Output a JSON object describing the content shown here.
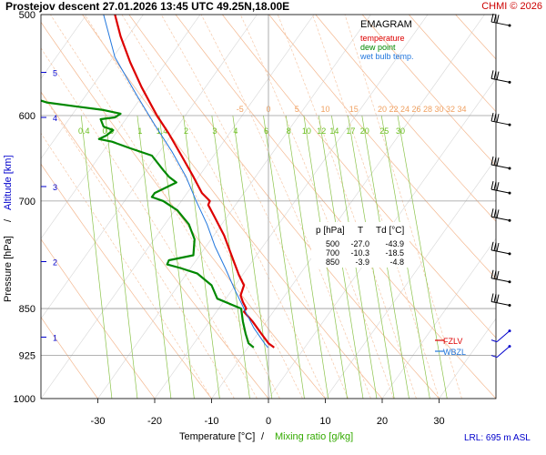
{
  "header": {
    "title": "Prostejov   descent  27.01.2026 13:45 UTC  49.25N,18.00E",
    "copyright": "CHMI © 2026"
  },
  "legend": {
    "heading": "EMAGRAM",
    "items": [
      {
        "label": "temperature",
        "color": "#dd0000"
      },
      {
        "label": "dew point",
        "color": "#008800"
      },
      {
        "label": "wet bulb temp.",
        "color": "#2277dd"
      }
    ]
  },
  "axes": {
    "xlabel_temp": "Temperature [°C]",
    "xlabel_sep": "/",
    "xlabel_mix": "Mixing ratio [g/kg]",
    "ylabel_pressure": "Pressure [hPa]",
    "ylabel_sep": "/",
    "ylabel_alt": "Altitude [km]",
    "lrl": "LRL: 695 m ASL"
  },
  "levels_table": {
    "headers": [
      "p [hPa]",
      "T",
      "Td [°C]"
    ],
    "rows": [
      [
        "500",
        "-27.0",
        "-43.9"
      ],
      [
        "700",
        "-10.3",
        "-18.5"
      ],
      [
        "850",
        "-3.9",
        "-4.8"
      ]
    ]
  },
  "markers": {
    "fzlv": "FZLV",
    "wbzl": "WBZL"
  },
  "chart_data": {
    "type": "line",
    "title": "Prostejov descent 27.01.2026 13:45 UTC 49.25N,18.00E",
    "x_range": [
      -40,
      40
    ],
    "y_range_hpa": [
      1000,
      500
    ],
    "x_ticks": [
      -30,
      -20,
      -10,
      0,
      10,
      20,
      30
    ],
    "x_tick_labels": [
      "-30",
      "-20",
      "-10",
      "0",
      "10",
      "20",
      "30"
    ],
    "pressure_ticks": [
      500,
      600,
      700,
      850,
      925,
      1000
    ],
    "altitude_ticks": [
      {
        "km": 5,
        "p": 555
      },
      {
        "km": 4,
        "p": 602
      },
      {
        "km": 3,
        "p": 682
      },
      {
        "km": 2,
        "p": 781
      },
      {
        "km": 1,
        "p": 895
      }
    ],
    "isotherm_labels": [
      {
        "t": -5,
        "label": "-5"
      },
      {
        "t": 0,
        "label": "0"
      },
      {
        "t": 5,
        "label": "5"
      },
      {
        "t": 10,
        "label": "10"
      },
      {
        "t": 15,
        "label": "15"
      },
      {
        "t": 20,
        "label": "20"
      },
      {
        "t": 22,
        "label": "22"
      },
      {
        "t": 24,
        "label": "24"
      },
      {
        "t": 26,
        "label": "26"
      },
      {
        "t": 28,
        "label": "28"
      },
      {
        "t": 30,
        "label": "30"
      },
      {
        "t": 32,
        "label": "32"
      },
      {
        "t": 34,
        "label": "34"
      }
    ],
    "mixing_ratios": [
      {
        "w": 0.4,
        "label": "0.4"
      },
      {
        "w": 0.6,
        "label": "0.6"
      },
      {
        "w": 1,
        "label": "1"
      },
      {
        "w": 1.4,
        "label": "1.4"
      },
      {
        "w": 2,
        "label": "2"
      },
      {
        "w": 3,
        "label": "3"
      },
      {
        "w": 4,
        "label": "4"
      },
      {
        "w": 6,
        "label": "6"
      },
      {
        "w": 8,
        "label": "8"
      },
      {
        "w": 10,
        "label": "10"
      },
      {
        "w": 12,
        "label": "12"
      },
      {
        "w": 14,
        "label": "14"
      },
      {
        "w": 17,
        "label": "17"
      },
      {
        "w": 20,
        "label": "20"
      },
      {
        "w": 25,
        "label": "25"
      },
      {
        "w": 30,
        "label": "30"
      }
    ],
    "series": [
      {
        "name": "temperature",
        "color": "#dd0000",
        "points": [
          [
            500,
            -27.0
          ],
          [
            520,
            -26.0
          ],
          [
            545,
            -24.3
          ],
          [
            570,
            -22.3
          ],
          [
            590,
            -20.5
          ],
          [
            600,
            -19.6
          ],
          [
            620,
            -17.5
          ],
          [
            645,
            -15.3
          ],
          [
            670,
            -13.2
          ],
          [
            690,
            -11.7
          ],
          [
            700,
            -10.3
          ],
          [
            705,
            -10.6
          ],
          [
            720,
            -9.5
          ],
          [
            745,
            -7.8
          ],
          [
            770,
            -6.6
          ],
          [
            800,
            -5.2
          ],
          [
            815,
            -4.3
          ],
          [
            830,
            -4.9
          ],
          [
            840,
            -4.5
          ],
          [
            850,
            -3.9
          ],
          [
            855,
            -4.3
          ],
          [
            870,
            -2.8
          ],
          [
            890,
            -1.2
          ],
          [
            905,
            0.0
          ],
          [
            912,
            1.0
          ]
        ]
      },
      {
        "name": "dew point",
        "color": "#008800",
        "points": [
          [
            582,
            -41.0
          ],
          [
            586,
            -39.0
          ],
          [
            590,
            -34.0
          ],
          [
            594,
            -29.0
          ],
          [
            598,
            -26.0
          ],
          [
            602,
            -27.0
          ],
          [
            604,
            -29.5
          ],
          [
            612,
            -29.0
          ],
          [
            616,
            -27.3
          ],
          [
            622,
            -28.5
          ],
          [
            626,
            -29.8
          ],
          [
            629,
            -27.5
          ],
          [
            636,
            -24.5
          ],
          [
            645,
            -20.5
          ],
          [
            662,
            -18.5
          ],
          [
            670,
            -17.5
          ],
          [
            677,
            -16.2
          ],
          [
            690,
            -20.0
          ],
          [
            695,
            -20.5
          ],
          [
            700,
            -18.5
          ],
          [
            712,
            -16.0
          ],
          [
            730,
            -14.0
          ],
          [
            750,
            -13.0
          ],
          [
            772,
            -13.2
          ],
          [
            779,
            -17.5
          ],
          [
            785,
            -17.8
          ],
          [
            790,
            -15.5
          ],
          [
            798,
            -12.5
          ],
          [
            815,
            -10.0
          ],
          [
            835,
            -9.0
          ],
          [
            850,
            -4.8
          ],
          [
            870,
            -4.5
          ],
          [
            890,
            -4.0
          ],
          [
            905,
            -3.5
          ],
          [
            912,
            -2.6
          ]
        ]
      },
      {
        "name": "wet bulb temp.",
        "color": "#2277dd",
        "points": [
          [
            500,
            -29.0
          ],
          [
            540,
            -27.0
          ],
          [
            580,
            -23.0
          ],
          [
            610,
            -20.0
          ],
          [
            640,
            -17.0
          ],
          [
            670,
            -14.5
          ],
          [
            700,
            -12.7
          ],
          [
            730,
            -10.8
          ],
          [
            760,
            -9.4
          ],
          [
            790,
            -7.6
          ],
          [
            820,
            -6.0
          ],
          [
            850,
            -4.3
          ],
          [
            880,
            -2.6
          ],
          [
            905,
            -0.7
          ],
          [
            912,
            -0.1
          ]
        ]
      }
    ],
    "wind_levels_hpa": [
      510,
      565,
      610,
      660,
      690,
      725,
      770,
      810,
      845,
      885,
      910
    ]
  }
}
